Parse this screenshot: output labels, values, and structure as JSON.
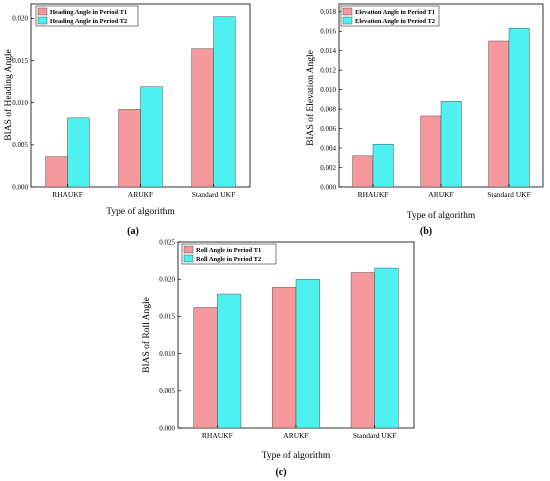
{
  "chart_data": [
    {
      "type": "bar",
      "panel_label": "(a)",
      "categories": [
        "RHAUKF",
        "ARUKF",
        "Standard UKF"
      ],
      "series": [
        {
          "name": "Heading Angle in Period T1",
          "values": [
            0.0036,
            0.0092,
            0.0164
          ],
          "color": "#F4989B"
        },
        {
          "name": "Heading Angle in Period T2",
          "values": [
            0.0082,
            0.0119,
            0.0202
          ],
          "color": "#4FF0F0"
        }
      ],
      "xlabel": "Type of algorithm",
      "ylabel": "BIAS of Heading Angle",
      "ylim": [
        0,
        0.0217
      ],
      "yticks": [
        "0.000",
        "0.005",
        "0.010",
        "0.015",
        "0.020"
      ],
      "ytick_values": [
        0,
        0.005,
        0.01,
        0.015,
        0.02
      ],
      "legend": "top-left",
      "grid": false
    },
    {
      "type": "bar",
      "panel_label": "(b)",
      "categories": [
        "RHAUKF",
        "ARUKF",
        "Standard UKF"
      ],
      "series": [
        {
          "name": "Elevation Angle in Period T1",
          "values": [
            0.0032,
            0.0073,
            0.015
          ],
          "color": "#F4989B"
        },
        {
          "name": "Elevation Angle in Period T2",
          "values": [
            0.0044,
            0.0088,
            0.0163
          ],
          "color": "#4FF0F0"
        }
      ],
      "xlabel": "Type of algorithm",
      "ylabel": "BIAS of Elevation Angle",
      "ylim": [
        0,
        0.0188
      ],
      "yticks": [
        "0.000",
        "0.002",
        "0.004",
        "0.006",
        "0.008",
        "0.010",
        "0.012",
        "0.014",
        "0.016",
        "0.018"
      ],
      "ytick_values": [
        0,
        0.002,
        0.004,
        0.006,
        0.008,
        0.01,
        0.012,
        0.014,
        0.016,
        0.018
      ],
      "legend": "top-left",
      "grid": false
    },
    {
      "type": "bar",
      "panel_label": "(c)",
      "categories": [
        "RHAUKF",
        "ARUKF",
        "Standard UKF"
      ],
      "series": [
        {
          "name": "Roll Angle in Period T1",
          "values": [
            0.0162,
            0.0189,
            0.0209
          ],
          "color": "#F4989B"
        },
        {
          "name": "Roll Angle in Period T2",
          "values": [
            0.018,
            0.02,
            0.0215
          ],
          "color": "#4FF0F0"
        }
      ],
      "xlabel": "Type of algorithm",
      "ylabel": "BIAS of Roll Angle",
      "ylim": [
        0,
        0.025
      ],
      "yticks": [
        "0.000",
        "0.005",
        "0.010",
        "0.015",
        "0.020",
        "0.025"
      ],
      "ytick_values": [
        0,
        0.005,
        0.01,
        0.015,
        0.02,
        0.025
      ],
      "legend": "top-left",
      "grid": false
    }
  ]
}
